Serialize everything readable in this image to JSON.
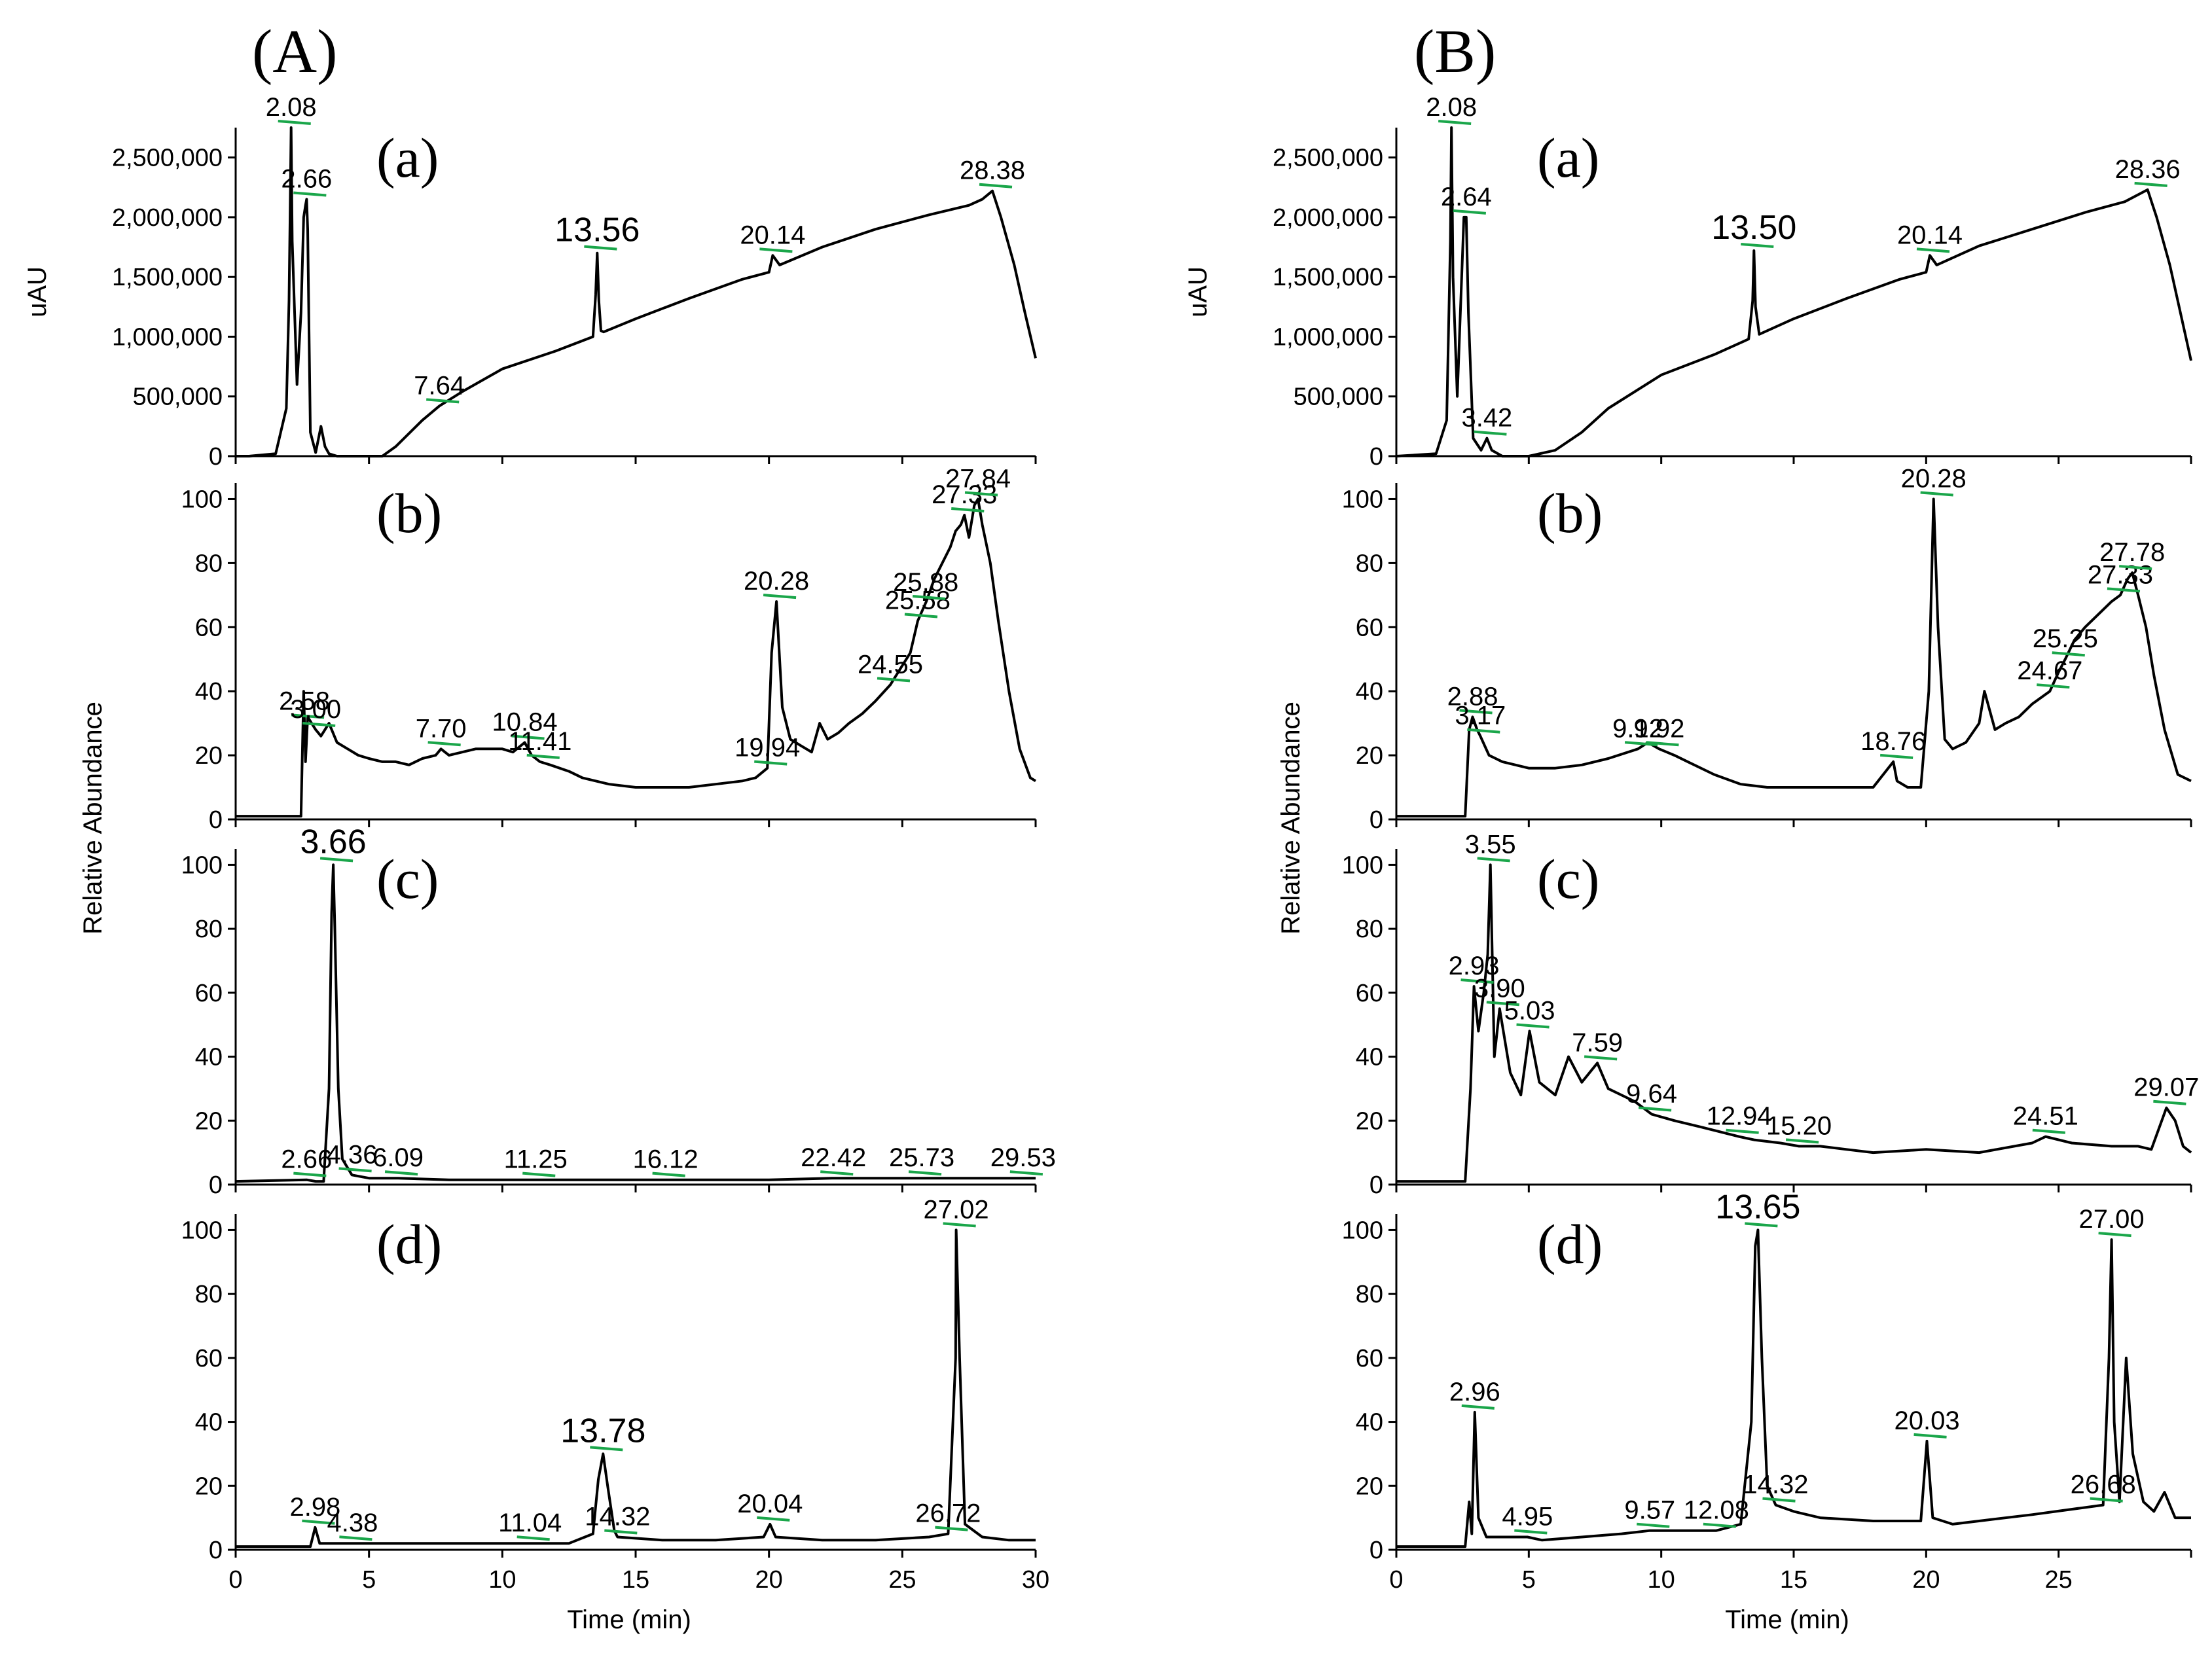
{
  "figure_labels": [
    "(A)",
    "(B)"
  ],
  "chart_data": [
    {
      "type": "line",
      "figure": "(A)",
      "panel": "(a)",
      "ylabel": "uAU",
      "xlim": [
        0,
        30
      ],
      "ylim": [
        0,
        2750000
      ],
      "yticks": [
        0,
        500000,
        1000000,
        1500000,
        2000000,
        2500000
      ],
      "ytick_labels": [
        "0",
        "500,000",
        "1,000,000",
        "1,500,000",
        "2,000,000",
        "2,500,000"
      ],
      "xticks": [],
      "xtick_labels": [],
      "xlabel": "",
      "x": [
        0,
        0.5,
        1.5,
        1.9,
        2.0,
        2.04,
        2.08,
        2.12,
        2.3,
        2.45,
        2.55,
        2.62,
        2.66,
        2.7,
        2.8,
        3.0,
        3.2,
        3.35,
        3.5,
        3.8,
        4.5,
        5.0,
        5.5,
        6.0,
        7.0,
        7.64,
        8.5,
        10,
        12,
        13.4,
        13.5,
        13.56,
        13.62,
        13.7,
        13.8,
        15,
        17,
        19,
        20.0,
        20.14,
        20.4,
        22,
        24,
        26,
        27.5,
        28.0,
        28.38,
        28.7,
        29.2,
        29.6,
        30.0
      ],
      "y": [
        0,
        0,
        20000,
        400000,
        1300000,
        2000000,
        2750000,
        1800000,
        600000,
        1200000,
        2000000,
        2100000,
        2150000,
        1900000,
        200000,
        30000,
        250000,
        80000,
        20000,
        0,
        0,
        0,
        0,
        80000,
        300000,
        420000,
        540000,
        730000,
        880000,
        1000000,
        1350000,
        1700000,
        1300000,
        1050000,
        1040000,
        1150000,
        1320000,
        1480000,
        1540000,
        1680000,
        1600000,
        1750000,
        1900000,
        2020000,
        2100000,
        2150000,
        2220000,
        2000000,
        1600000,
        1200000,
        820000
      ],
      "annotations": [
        {
          "text": "2.08",
          "x": 2.08
        },
        {
          "text": "2.66",
          "x": 2.66
        },
        {
          "text": "7.64",
          "x": 7.64
        },
        {
          "text": "13.56",
          "x": 13.56
        },
        {
          "text": "20.14",
          "x": 20.14
        },
        {
          "text": "28.38",
          "x": 28.38
        }
      ]
    },
    {
      "type": "line",
      "figure": "(A)",
      "panel": "(b)",
      "ylabel": "",
      "xlim": [
        0,
        30
      ],
      "ylim": [
        0,
        105
      ],
      "yticks": [
        0,
        20,
        40,
        60,
        80,
        100
      ],
      "ytick_labels": [
        "0",
        "20",
        "40",
        "60",
        "80",
        "100"
      ],
      "xticks": [],
      "xtick_labels": [],
      "xlabel": "",
      "x": [
        0,
        2.2,
        2.45,
        2.55,
        2.62,
        2.7,
        3.0,
        3.2,
        3.5,
        3.8,
        4.2,
        4.6,
        5.0,
        5.5,
        6.0,
        6.5,
        7.0,
        7.5,
        7.7,
        8.0,
        8.5,
        9.0,
        9.5,
        10.0,
        10.4,
        10.84,
        11.1,
        11.41,
        11.8,
        12.5,
        13.0,
        14.0,
        15.0,
        16.0,
        17.0,
        18.0,
        19.0,
        19.5,
        19.94,
        20.1,
        20.28,
        20.5,
        20.8,
        21.2,
        21.6,
        21.9,
        22.2,
        22.6,
        23.0,
        23.5,
        24.0,
        24.55,
        25.0,
        25.3,
        25.58,
        25.9,
        26.2,
        26.5,
        26.8,
        27.0,
        27.2,
        27.33,
        27.5,
        27.7,
        27.84,
        28.0,
        28.3,
        28.6,
        29.0,
        29.4,
        29.8,
        30.0
      ],
      "y": [
        1,
        1,
        1,
        40,
        18,
        32,
        28,
        26,
        30,
        24,
        22,
        20,
        19,
        18,
        18,
        17,
        19,
        20,
        22,
        20,
        21,
        22,
        22,
        22,
        21,
        24,
        20,
        18,
        17,
        15,
        13,
        11,
        10,
        10,
        10,
        11,
        12,
        13,
        16,
        52,
        68,
        35,
        25,
        23,
        21,
        30,
        25,
        27,
        30,
        33,
        37,
        42,
        48,
        52,
        62,
        68,
        75,
        80,
        85,
        90,
        92,
        95,
        88,
        98,
        100,
        92,
        80,
        62,
        40,
        22,
        13,
        12
      ],
      "annotations": [
        {
          "text": "2.58",
          "x": 2.58
        },
        {
          "text": "3.00",
          "x": 3.0
        },
        {
          "text": "7.70",
          "x": 7.7
        },
        {
          "text": "10.84",
          "x": 10.84
        },
        {
          "text": "11.41",
          "x": 11.41
        },
        {
          "text": "19.94",
          "x": 19.94
        },
        {
          "text": "20.28",
          "x": 20.28
        },
        {
          "text": "24.55",
          "x": 24.55
        },
        {
          "text": "25.58",
          "x": 25.58
        },
        {
          "text": "25.88",
          "x": 25.88
        },
        {
          "text": "27.33",
          "x": 27.33
        },
        {
          "text": "27.84",
          "x": 27.84
        }
      ]
    },
    {
      "type": "line",
      "figure": "(A)",
      "panel": "(c)",
      "ylabel": "",
      "xlim": [
        0,
        30
      ],
      "ylim": [
        0,
        105
      ],
      "yticks": [
        0,
        20,
        40,
        60,
        80,
        100
      ],
      "ytick_labels": [
        "0",
        "20",
        "40",
        "60",
        "80",
        "100"
      ],
      "xticks": [],
      "xtick_labels": [],
      "xlabel": "",
      "x": [
        0,
        2.66,
        3.0,
        3.3,
        3.5,
        3.6,
        3.66,
        3.72,
        3.85,
        4.0,
        4.36,
        5.0,
        6.09,
        8.0,
        11.25,
        14.0,
        16.12,
        20.0,
        22.42,
        25.73,
        28.0,
        29.53,
        30.0
      ],
      "y": [
        1,
        1.5,
        1,
        1,
        30,
        85,
        100,
        80,
        30,
        8,
        3,
        2,
        2,
        1.5,
        1.5,
        1.5,
        1.5,
        1.5,
        2,
        2,
        2,
        2,
        2
      ],
      "annotations": [
        {
          "text": "2.66",
          "x": 2.66
        },
        {
          "text": "3.66",
          "x": 3.66
        },
        {
          "text": "4.36",
          "x": 4.36
        },
        {
          "text": "6.09",
          "x": 6.09
        },
        {
          "text": "11.25",
          "x": 11.25
        },
        {
          "text": "16.12",
          "x": 16.12
        },
        {
          "text": "22.42",
          "x": 22.42
        },
        {
          "text": "25.73",
          "x": 25.73
        },
        {
          "text": "29.53",
          "x": 29.53
        }
      ]
    },
    {
      "type": "line",
      "figure": "(A)",
      "panel": "(d)",
      "ylabel": "",
      "xlim": [
        0,
        30
      ],
      "ylim": [
        0,
        105
      ],
      "yticks": [
        0,
        20,
        40,
        60,
        80,
        100
      ],
      "ytick_labels": [
        "0",
        "20",
        "40",
        "60",
        "80",
        "100"
      ],
      "xticks": [
        0,
        5,
        10,
        15,
        20,
        25,
        30
      ],
      "xtick_labels": [
        "0",
        "5",
        "10",
        "15",
        "20",
        "25",
        "30"
      ],
      "xlabel": "Time (min)",
      "x": [
        0,
        2.8,
        2.98,
        3.15,
        4.38,
        6.0,
        8.0,
        10.0,
        11.04,
        12.5,
        13.4,
        13.6,
        13.78,
        13.95,
        14.2,
        14.32,
        16.0,
        18.0,
        19.8,
        20.04,
        20.25,
        22.0,
        24.0,
        26.0,
        26.72,
        27.0,
        27.02,
        27.15,
        27.35,
        28.0,
        29.0,
        30.0
      ],
      "y": [
        1,
        1,
        7,
        2,
        2,
        2,
        2,
        2,
        2,
        2,
        5,
        22,
        30,
        20,
        6,
        4,
        3,
        3,
        4,
        8,
        4,
        3,
        3,
        4,
        5,
        60,
        100,
        60,
        8,
        4,
        3,
        3
      ],
      "annotations": [
        {
          "text": "2.98",
          "x": 2.98
        },
        {
          "text": "4.38",
          "x": 4.38
        },
        {
          "text": "11.04",
          "x": 11.04
        },
        {
          "text": "13.78",
          "x": 13.78
        },
        {
          "text": "14.32",
          "x": 14.32
        },
        {
          "text": "20.04",
          "x": 20.04
        },
        {
          "text": "26.72",
          "x": 26.72
        },
        {
          "text": "27.02",
          "x": 27.02
        }
      ]
    },
    {
      "type": "line",
      "figure": "(B)",
      "panel": "(a)",
      "ylabel": "uAU",
      "xlim": [
        0,
        30
      ],
      "ylim": [
        0,
        2750000
      ],
      "yticks": [
        0,
        500000,
        1000000,
        1500000,
        2000000,
        2500000
      ],
      "ytick_labels": [
        "0",
        "500,000",
        "1,000,000",
        "1,500,000",
        "2,000,000",
        "2,500,000"
      ],
      "xticks": [],
      "xtick_labels": [],
      "xlabel": "",
      "x": [
        0,
        1.5,
        1.9,
        2.04,
        2.08,
        2.14,
        2.3,
        2.55,
        2.64,
        2.72,
        2.9,
        3.2,
        3.42,
        3.6,
        4.0,
        5.0,
        6.0,
        7.0,
        8.0,
        10.0,
        12.0,
        13.3,
        13.45,
        13.5,
        13.56,
        13.7,
        15.0,
        17.0,
        19.0,
        20.0,
        20.14,
        20.4,
        22.0,
        24.0,
        26.0,
        27.5,
        28.36,
        28.7,
        29.2,
        29.6,
        30.0
      ],
      "y": [
        0,
        20000,
        300000,
        1800000,
        2750000,
        1500000,
        500000,
        2000000,
        2000000,
        1200000,
        150000,
        50000,
        150000,
        50000,
        0,
        0,
        50000,
        200000,
        400000,
        680000,
        850000,
        980000,
        1300000,
        1720000,
        1250000,
        1020000,
        1150000,
        1320000,
        1480000,
        1540000,
        1680000,
        1600000,
        1760000,
        1900000,
        2040000,
        2130000,
        2230000,
        2000000,
        1600000,
        1200000,
        800000
      ],
      "annotations": [
        {
          "text": "2.08",
          "x": 2.08
        },
        {
          "text": "2.64",
          "x": 2.64
        },
        {
          "text": "3.42",
          "x": 3.42
        },
        {
          "text": "13.50",
          "x": 13.5
        },
        {
          "text": "20.14",
          "x": 20.14
        },
        {
          "text": "28.36",
          "x": 28.36
        }
      ]
    },
    {
      "type": "line",
      "figure": "(B)",
      "panel": "(b)",
      "ylabel": "",
      "xlim": [
        0,
        30
      ],
      "ylim": [
        0,
        105
      ],
      "yticks": [
        0,
        20,
        40,
        60,
        80,
        100
      ],
      "ytick_labels": [
        "0",
        "20",
        "40",
        "60",
        "80",
        "100"
      ],
      "xticks": [],
      "xtick_labels": [],
      "xlabel": "",
      "x": [
        0,
        2.4,
        2.6,
        2.75,
        2.88,
        3.05,
        3.17,
        3.5,
        4.0,
        5.0,
        6.0,
        7.0,
        8.0,
        9.12,
        9.5,
        9.92,
        10.5,
        11.0,
        12.0,
        13.0,
        14.0,
        15.0,
        16.0,
        17.0,
        18.0,
        18.76,
        18.9,
        19.3,
        19.8,
        20.1,
        20.28,
        20.45,
        20.7,
        21.0,
        21.5,
        22.0,
        22.2,
        22.6,
        23.0,
        23.5,
        24.0,
        24.67,
        25.0,
        25.25,
        25.6,
        26.0,
        26.5,
        27.0,
        27.33,
        27.6,
        27.78,
        28.0,
        28.3,
        28.6,
        29.0,
        29.5,
        30.0
      ],
      "y": [
        1,
        1,
        1,
        28,
        32,
        28,
        26,
        20,
        18,
        16,
        16,
        17,
        19,
        22,
        24,
        22,
        20,
        18,
        14,
        11,
        10,
        10,
        10,
        10,
        10,
        18,
        12,
        10,
        10,
        40,
        100,
        60,
        25,
        22,
        24,
        30,
        40,
        28,
        30,
        32,
        36,
        40,
        46,
        50,
        56,
        60,
        64,
        68,
        70,
        75,
        77,
        70,
        60,
        45,
        28,
        14,
        12
      ],
      "annotations": [
        {
          "text": "2.88",
          "x": 2.88
        },
        {
          "text": "3.17",
          "x": 3.17
        },
        {
          "text": "9.12",
          "x": 9.12
        },
        {
          "text": "9.92",
          "x": 9.92
        },
        {
          "text": "18.76",
          "x": 18.76
        },
        {
          "text": "20.28",
          "x": 20.28
        },
        {
          "text": "24.67",
          "x": 24.67
        },
        {
          "text": "25.25",
          "x": 25.25
        },
        {
          "text": "27.33",
          "x": 27.33
        },
        {
          "text": "27.78",
          "x": 27.78
        }
      ]
    },
    {
      "type": "line",
      "figure": "(B)",
      "panel": "(c)",
      "ylabel": "",
      "xlim": [
        0,
        30
      ],
      "ylim": [
        0,
        105
      ],
      "yticks": [
        0,
        20,
        40,
        60,
        80,
        100
      ],
      "ytick_labels": [
        "0",
        "20",
        "40",
        "60",
        "80",
        "100"
      ],
      "xticks": [],
      "xtick_labels": [],
      "xlabel": "",
      "x": [
        0,
        2.6,
        2.8,
        2.93,
        3.1,
        3.3,
        3.45,
        3.55,
        3.7,
        3.9,
        4.3,
        4.7,
        5.03,
        5.4,
        6.0,
        6.5,
        7.0,
        7.59,
        8.0,
        9.0,
        9.64,
        10.5,
        11.5,
        12.94,
        13.5,
        14.5,
        15.2,
        16.0,
        17.0,
        18.0,
        20.0,
        22.0,
        24.0,
        24.51,
        25.5,
        27.0,
        28.0,
        28.5,
        29.07,
        29.4,
        29.7,
        30.0
      ],
      "y": [
        1,
        1,
        30,
        62,
        48,
        60,
        72,
        100,
        40,
        55,
        35,
        28,
        48,
        32,
        28,
        40,
        32,
        38,
        30,
        26,
        22,
        20,
        18,
        15,
        14,
        13,
        12,
        12,
        11,
        10,
        11,
        10,
        13,
        15,
        13,
        12,
        12,
        11,
        24,
        20,
        12,
        10
      ],
      "annotations": [
        {
          "text": "2.93",
          "x": 2.93
        },
        {
          "text": "3.55",
          "x": 3.55
        },
        {
          "text": "3.90",
          "x": 3.9
        },
        {
          "text": "5.03",
          "x": 5.03
        },
        {
          "text": "7.59",
          "x": 7.59
        },
        {
          "text": "9.64",
          "x": 9.64
        },
        {
          "text": "12.94",
          "x": 12.94
        },
        {
          "text": "15.20",
          "x": 15.2
        },
        {
          "text": "24.51",
          "x": 24.51
        },
        {
          "text": "29.07",
          "x": 29.07
        }
      ]
    },
    {
      "type": "line",
      "figure": "(B)",
      "panel": "(d)",
      "ylabel": "",
      "xlim": [
        0,
        30
      ],
      "ylim": [
        0,
        105
      ],
      "yticks": [
        0,
        20,
        40,
        60,
        80,
        100
      ],
      "ytick_labels": [
        "0",
        "20",
        "40",
        "60",
        "80",
        "100"
      ],
      "xticks": [
        0,
        5,
        10,
        15,
        20,
        25
      ],
      "xtick_labels": [
        "0",
        "5",
        "10",
        "15",
        "20",
        "25"
      ],
      "xlabel": "Time (min)",
      "x": [
        0,
        2.6,
        2.75,
        2.85,
        2.96,
        3.1,
        3.4,
        4.95,
        5.5,
        7.0,
        8.5,
        9.57,
        11.0,
        12.08,
        13.0,
        13.4,
        13.55,
        13.65,
        13.8,
        14.0,
        14.32,
        15.0,
        16.0,
        18.0,
        19.8,
        20.03,
        20.25,
        21.0,
        22.0,
        24.0,
        26.68,
        26.9,
        27.0,
        27.1,
        27.3,
        27.55,
        27.8,
        28.2,
        28.6,
        29.0,
        29.4,
        30.0
      ],
      "y": [
        1,
        1,
        15,
        5,
        43,
        10,
        4,
        4,
        3,
        4,
        5,
        6,
        6,
        6,
        8,
        40,
        95,
        100,
        60,
        20,
        14,
        12,
        10,
        9,
        9,
        34,
        10,
        8,
        9,
        11,
        14,
        60,
        97,
        40,
        15,
        60,
        30,
        15,
        12,
        18,
        10,
        10
      ],
      "annotations": [
        {
          "text": "2.96",
          "x": 2.96
        },
        {
          "text": "4.95",
          "x": 4.95
        },
        {
          "text": "9.57",
          "x": 9.57
        },
        {
          "text": "12.08",
          "x": 12.08
        },
        {
          "text": "13.65",
          "x": 13.65
        },
        {
          "text": "14.32",
          "x": 14.32
        },
        {
          "text": "20.03",
          "x": 20.03
        },
        {
          "text": "26.68",
          "x": 26.68
        },
        {
          "text": "27.00",
          "x": 27.0
        }
      ]
    }
  ],
  "shared_ylabels": [
    "Relative Abundance",
    "Relative Abundance"
  ]
}
